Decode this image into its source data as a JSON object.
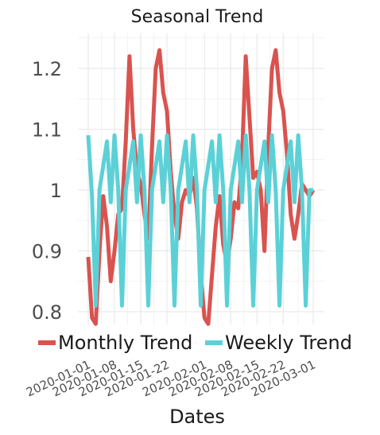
{
  "chart_data": {
    "type": "line",
    "title": "Seasonal Trend",
    "xlabel": "Dates",
    "ylabel": "",
    "ylim": [
      0.77,
      1.26
    ],
    "yticks": [
      0.8,
      0.9,
      1.0,
      1.1,
      1.2
    ],
    "ytick_labels": [
      "0.8",
      "0.9",
      "1",
      "1.1",
      "1.2"
    ],
    "xlim": [
      "2020-01-01",
      "2020-03-02"
    ],
    "xticks": [
      "2020-01-01",
      "2020-01-08",
      "2020-01-15",
      "2020-01-22",
      "2020-02-01",
      "2020-02-08",
      "2020-02-15",
      "2020-02-22",
      "2020-03-01"
    ],
    "grid": true,
    "legend_position": "bottom",
    "x": [
      "2020-01-01",
      "2020-01-02",
      "2020-01-03",
      "2020-01-04",
      "2020-01-05",
      "2020-01-06",
      "2020-01-07",
      "2020-01-08",
      "2020-01-09",
      "2020-01-10",
      "2020-01-11",
      "2020-01-12",
      "2020-01-13",
      "2020-01-14",
      "2020-01-15",
      "2020-01-16",
      "2020-01-17",
      "2020-01-18",
      "2020-01-19",
      "2020-01-20",
      "2020-01-21",
      "2020-01-22",
      "2020-01-23",
      "2020-01-24",
      "2020-01-25",
      "2020-01-26",
      "2020-01-27",
      "2020-01-28",
      "2020-01-29",
      "2020-01-30",
      "2020-01-31",
      "2020-02-01",
      "2020-02-02",
      "2020-02-03",
      "2020-02-04",
      "2020-02-05",
      "2020-02-06",
      "2020-02-07",
      "2020-02-08",
      "2020-02-09",
      "2020-02-10",
      "2020-02-11",
      "2020-02-12",
      "2020-02-13",
      "2020-02-14",
      "2020-02-15",
      "2020-02-16",
      "2020-02-17",
      "2020-02-18",
      "2020-02-19",
      "2020-02-20",
      "2020-02-21",
      "2020-02-22",
      "2020-02-23",
      "2020-02-24",
      "2020-02-25",
      "2020-02-26",
      "2020-02-27",
      "2020-02-28",
      "2020-02-29",
      "2020-03-01"
    ],
    "series": [
      {
        "name": "Monthly Trend",
        "color": "#d9534f",
        "values": [
          0.89,
          0.79,
          0.78,
          0.9,
          0.99,
          0.94,
          0.85,
          0.9,
          0.96,
          0.97,
          1.08,
          1.22,
          1.1,
          1.03,
          1.01,
          0.96,
          0.92,
          1.07,
          1.2,
          1.23,
          1.16,
          1.13,
          1.03,
          0.96,
          0.92,
          0.98,
          1.0,
          0.99,
          1.02,
          0.97,
          0.86,
          0.79,
          0.78,
          0.86,
          0.94,
          0.99,
          0.91,
          0.88,
          0.92,
          0.98,
          0.97,
          1.05,
          1.22,
          1.12,
          1.02,
          1.03,
          1.0,
          0.9,
          1.07,
          1.2,
          1.23,
          1.16,
          1.13,
          1.06,
          0.96,
          0.92,
          0.96,
          1.01,
          1.0,
          0.99,
          1.0
        ]
      },
      {
        "name": "Weekly Trend",
        "color": "#5bd1d7",
        "values": [
          1.09,
          0.99,
          0.81,
          1.0,
          1.04,
          1.08,
          0.98,
          1.09,
          1.0,
          0.81,
          1.0,
          1.04,
          1.08,
          0.98,
          1.09,
          1.0,
          0.81,
          1.0,
          1.04,
          1.08,
          0.98,
          1.09,
          1.0,
          0.81,
          1.0,
          1.04,
          1.08,
          0.98,
          1.09,
          1.0,
          0.81,
          1.0,
          1.04,
          1.08,
          0.98,
          1.09,
          1.0,
          0.81,
          1.0,
          1.04,
          1.08,
          0.98,
          1.09,
          1.0,
          0.81,
          1.0,
          1.04,
          1.08,
          0.98,
          1.09,
          1.0,
          0.81,
          1.0,
          1.04,
          1.08,
          0.98,
          1.09,
          1.0,
          0.81,
          1.0,
          1.0
        ]
      }
    ]
  }
}
